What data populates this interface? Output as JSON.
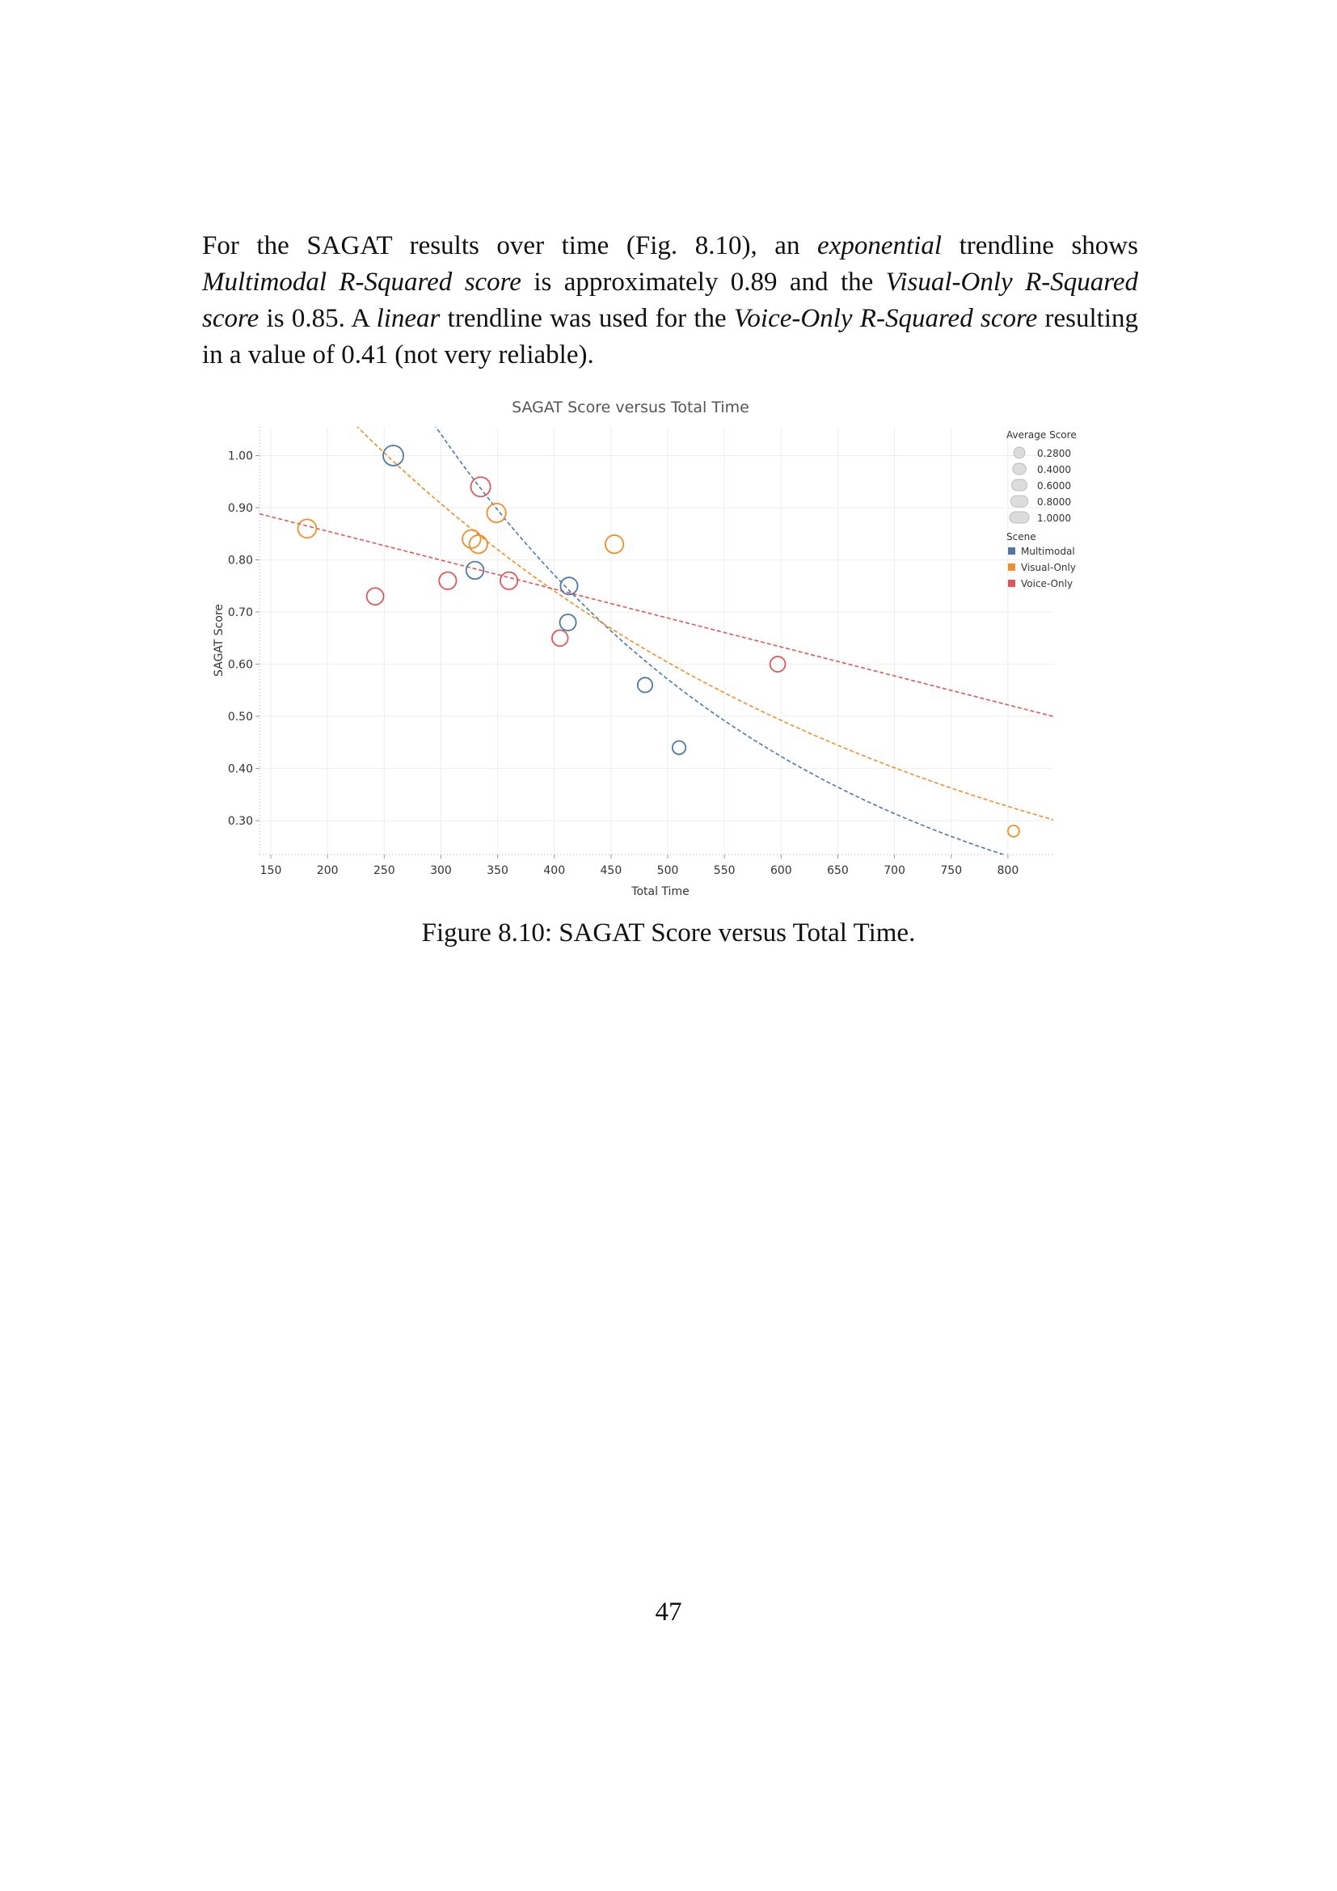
{
  "paragraph": {
    "t1": "For the SAGAT results over time (Fig. 8.10), an ",
    "e1": "exponential",
    "t2": " trendline shows ",
    "e2": "Multimodal R-Squared score",
    "t3": " is approximately 0.89 and the ",
    "e3": "Visual-Only R-Squared score",
    "t4": " is 0.85. A ",
    "e4": "linear",
    "t5": " trendline was used for the ",
    "e5": "Voice-Only R-Squared score",
    "t6": " resulting in a value of 0.41 (not very reliable)."
  },
  "caption": "Figure 8.10: SAGAT Score versus Total Time.",
  "page_number": "47",
  "chart_data": {
    "type": "scatter",
    "title": "SAGAT Score versus Total Time",
    "xlabel": "Total Time",
    "ylabel": "SAGAT Score",
    "xlim": [
      140,
      840
    ],
    "ylim": [
      0.235,
      1.055
    ],
    "xticks": [
      "150",
      "200",
      "250",
      "300",
      "350",
      "400",
      "450",
      "500",
      "550",
      "600",
      "650",
      "700",
      "750",
      "800"
    ],
    "yticks": [
      "0.30",
      "0.40",
      "0.50",
      "0.60",
      "0.70",
      "0.80",
      "0.90",
      "1.00"
    ],
    "grid": true,
    "legend_position": "right",
    "size_legend": {
      "title": "Average Score",
      "entries": [
        "0.2800",
        "0.4000",
        "0.6000",
        "0.8000",
        "1.0000"
      ],
      "values": [
        0.28,
        0.4,
        0.6,
        0.8,
        1.0
      ]
    },
    "color_legend": {
      "title": "Scene",
      "entries": [
        "Multimodal",
        "Visual-Only",
        "Voice-Only"
      ]
    },
    "series": [
      {
        "name": "Multimodal",
        "color": "#4e79a7",
        "trend": "exponential",
        "trend_params": {
          "a": 2.56,
          "b": -0.003
        },
        "points": [
          {
            "x": 258,
            "y": 1.0
          },
          {
            "x": 330,
            "y": 0.78
          },
          {
            "x": 413,
            "y": 0.75
          },
          {
            "x": 412,
            "y": 0.68
          },
          {
            "x": 480,
            "y": 0.56
          },
          {
            "x": 510,
            "y": 0.44
          }
        ]
      },
      {
        "name": "Visual-Only",
        "color": "#f28e2b",
        "trend": "exponential",
        "trend_params": {
          "a": 1.674,
          "b": -0.00204
        },
        "points": [
          {
            "x": 182,
            "y": 0.86
          },
          {
            "x": 327,
            "y": 0.84
          },
          {
            "x": 333,
            "y": 0.83
          },
          {
            "x": 349,
            "y": 0.89
          },
          {
            "x": 453,
            "y": 0.83
          },
          {
            "x": 805,
            "y": 0.28
          }
        ]
      },
      {
        "name": "Voice-Only",
        "color": "#e15759",
        "trend": "linear",
        "trend_params": {
          "slope": -0.000555,
          "intercept": 0.966
        },
        "points": [
          {
            "x": 242,
            "y": 0.73
          },
          {
            "x": 306,
            "y": 0.76
          },
          {
            "x": 335,
            "y": 0.94
          },
          {
            "x": 360,
            "y": 0.76
          },
          {
            "x": 405,
            "y": 0.65
          },
          {
            "x": 597,
            "y": 0.6
          }
        ]
      }
    ]
  }
}
